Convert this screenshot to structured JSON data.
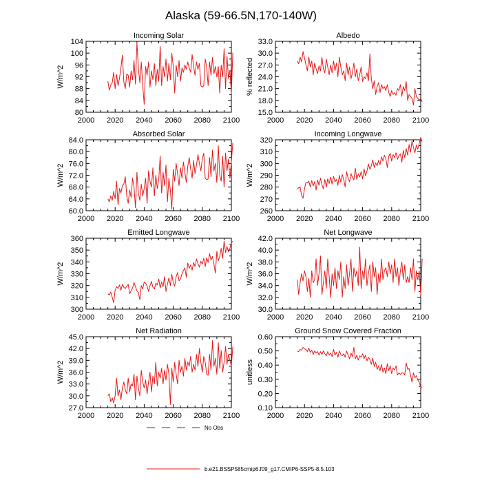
{
  "figure": {
    "title": "Alaska (59-66.5N,170-140W)",
    "legend": [
      {
        "label": "No Obs",
        "color": "#2b2bd6",
        "dash": true
      },
      {
        "label": "b.e21.BSSP585cmip6.f09_g17.CMIP6-SSP5-8.5.103",
        "color": "#e6191a",
        "dash": false
      }
    ],
    "line_color": "#e6191a"
  },
  "chart_data": [
    {
      "type": "line",
      "title": "Incoming Solar",
      "ylabel": "W/m^2",
      "xlim": [
        2000,
        2100
      ],
      "xticks": [
        2000,
        2020,
        2040,
        2060,
        2080,
        2100
      ],
      "ylim": [
        80,
        104
      ],
      "yticks": [
        "80",
        "84",
        "88",
        "92",
        "96",
        "100",
        "104"
      ],
      "x_start": 2015,
      "values": [
        90.5,
        87.5,
        89.2,
        90.0,
        93.5,
        88.0,
        92.8,
        89.0,
        91.5,
        95.0,
        99.3,
        90.2,
        88.0,
        93.0,
        92.5,
        88.5,
        94.0,
        91.0,
        97.5,
        89.5,
        103.6,
        95.0,
        90.0,
        97.0,
        89.0,
        82.7,
        95.5,
        92.5,
        97.0,
        88.5,
        94.0,
        91.0,
        96.5,
        89.0,
        94.5,
        90.5,
        102.3,
        89.0,
        95.5,
        92.0,
        98.0,
        90.5,
        96.5,
        91.0,
        100.0,
        95.5,
        86.5,
        96.0,
        92.0,
        97.5,
        90.5,
        95.0,
        93.5,
        96.0,
        94.5,
        97.0,
        95.0,
        93.5,
        99.5,
        95.5,
        92.5,
        97.0,
        94.5,
        96.5,
        89.0,
        88.5,
        89.0,
        98.0,
        95.5,
        89.0,
        97.0,
        92.5,
        98.5,
        93.0,
        95.5,
        92.0,
        95.5,
        86.5,
        96.0,
        92.0,
        101.5,
        88.0,
        99.0,
        91.5,
        94.0,
        86.2,
        100.2
      ]
    },
    {
      "type": "line",
      "title": "Albedo",
      "ylabel": "% reflected",
      "xlim": [
        2000,
        2100
      ],
      "xticks": [
        2000,
        2020,
        2040,
        2060,
        2080,
        2100
      ],
      "ylim": [
        15,
        33
      ],
      "yticks": [
        "15.0",
        "18.0",
        "21.0",
        "24.0",
        "27.0",
        "30.0",
        "33.0"
      ],
      "x_start": 2015,
      "values": [
        28.0,
        27.3,
        29.0,
        27.8,
        30.4,
        28.8,
        27.0,
        25.5,
        29.0,
        26.5,
        28.0,
        24.5,
        27.5,
        26.0,
        24.8,
        26.8,
        25.5,
        29.0,
        26.0,
        25.0,
        28.5,
        26.5,
        24.5,
        27.0,
        25.0,
        28.0,
        25.5,
        27.5,
        24.0,
        29.0,
        26.5,
        24.5,
        25.5,
        23.0,
        27.5,
        24.5,
        26.5,
        23.5,
        25.0,
        27.5,
        24.0,
        26.0,
        23.0,
        24.5,
        26.5,
        22.8,
        24.0,
        23.5,
        25.0,
        23.0,
        29.8,
        23.5,
        21.0,
        23.0,
        19.5,
        21.5,
        22.5,
        20.0,
        22.0,
        21.0,
        21.5,
        20.5,
        22.0,
        20.0,
        19.0,
        20.5,
        19.5,
        20.0,
        19.3,
        21.0,
        20.5,
        22.0,
        19.0,
        21.5,
        20.5,
        22.8,
        18.0,
        19.5,
        19.0,
        18.5,
        16.8,
        21.0,
        19.0,
        18.5,
        18.0,
        18.5,
        17.7
      ]
    },
    {
      "type": "line",
      "title": "Absorbed Solar",
      "ylabel": "W/m^2",
      "xlim": [
        2000,
        2100
      ],
      "xticks": [
        2000,
        2020,
        2040,
        2060,
        2080,
        2100
      ],
      "ylim": [
        60,
        84
      ],
      "yticks": [
        "60.0",
        "64.0",
        "68.0",
        "72.0",
        "76.0",
        "80.0",
        "84.0"
      ],
      "x_start": 2015,
      "values": [
        64.0,
        63.0,
        65.0,
        63.5,
        66.5,
        64.0,
        70.0,
        62.0,
        67.5,
        66.0,
        68.5,
        69.0,
        71.5,
        65.0,
        62.5,
        67.0,
        64.5,
        71.0,
        68.0,
        61.0,
        73.0,
        66.0,
        63.5,
        69.0,
        65.0,
        67.5,
        71.0,
        62.5,
        73.5,
        70.0,
        68.0,
        74.5,
        65.0,
        72.0,
        67.5,
        70.5,
        78.5,
        66.0,
        73.0,
        68.5,
        75.5,
        63.0,
        71.0,
        67.0,
        60.5,
        74.0,
        70.0,
        76.0,
        72.5,
        68.5,
        74.5,
        71.0,
        76.5,
        73.0,
        69.5,
        75.0,
        78.0,
        74.0,
        71.0,
        77.0,
        72.5,
        75.5,
        79.0,
        76.0,
        73.5,
        77.5,
        79.5,
        71.0,
        70.5,
        70.8,
        78.0,
        71.5,
        80.5,
        73.5,
        76.0,
        69.5,
        82.0,
        72.0,
        70.0,
        78.5,
        68.0,
        79.5,
        73.5,
        77.5,
        71.0,
        76.5,
        83.0
      ]
    },
    {
      "type": "line",
      "title": "Incoming Longwave",
      "ylabel": "W/m^2",
      "xlim": [
        2000,
        2100
      ],
      "xticks": [
        2000,
        2020,
        2040,
        2060,
        2080,
        2100
      ],
      "ylim": [
        260,
        320
      ],
      "yticks": [
        "260",
        "270",
        "280",
        "290",
        "300",
        "310",
        "320"
      ],
      "x_start": 2015,
      "values": [
        278.0,
        279.5,
        280.0,
        273.0,
        270.5,
        278.5,
        284.0,
        283.5,
        285.0,
        280.0,
        285.5,
        281.0,
        284.5,
        277.5,
        286.0,
        281.5,
        287.5,
        282.0,
        278.5,
        286.5,
        280.0,
        287.0,
        283.0,
        288.5,
        282.5,
        289.0,
        284.5,
        286.5,
        281.5,
        290.0,
        284.0,
        290.5,
        286.5,
        280.0,
        293.0,
        287.5,
        284.5,
        291.5,
        288.0,
        286.0,
        296.0,
        286.5,
        291.0,
        288.5,
        293.0,
        287.0,
        295.5,
        289.5,
        293.5,
        299.5,
        295.0,
        298.0,
        303.0,
        296.5,
        300.5,
        298.0,
        302.5,
        299.0,
        305.5,
        302.0,
        307.0,
        304.0,
        296.5,
        306.0,
        308.5,
        302.0,
        307.5,
        305.0,
        309.0,
        303.5,
        306.5,
        308.0,
        301.0,
        311.0,
        305.0,
        312.5,
        307.0,
        316.0,
        309.5,
        319.0,
        313.5,
        309.0,
        315.5,
        312.0,
        317.0,
        322.0,
        318.5
      ]
    },
    {
      "type": "line",
      "title": "Emitted Longwave",
      "ylabel": "W/m^2",
      "xlim": [
        2000,
        2100
      ],
      "xticks": [
        2000,
        2020,
        2040,
        2060,
        2080,
        2100
      ],
      "ylim": [
        300,
        360
      ],
      "yticks": [
        "300",
        "310",
        "320",
        "330",
        "340",
        "350",
        "360"
      ],
      "x_start": 2015,
      "values": [
        313.0,
        312.0,
        314.5,
        310.0,
        305.5,
        316.0,
        319.0,
        317.5,
        320.5,
        316.0,
        321.0,
        318.5,
        317.5,
        319.5,
        321.0,
        313.0,
        315.5,
        318.0,
        322.5,
        319.0,
        315.5,
        314.0,
        308.0,
        320.0,
        317.0,
        323.0,
        322.0,
        319.5,
        315.0,
        320.0,
        323.5,
        318.5,
        317.0,
        322.0,
        320.5,
        325.5,
        318.0,
        323.0,
        319.0,
        327.5,
        315.0,
        321.0,
        326.5,
        320.0,
        329.5,
        322.5,
        319.5,
        327.5,
        331.0,
        324.0,
        325.5,
        330.0,
        332.5,
        335.0,
        327.0,
        339.0,
        334.5,
        337.5,
        333.0,
        339.5,
        336.0,
        342.5,
        338.5,
        335.5,
        340.5,
        338.0,
        343.0,
        336.0,
        343.5,
        339.5,
        347.0,
        341.5,
        344.5,
        338.0,
        330.5,
        349.0,
        341.0,
        344.5,
        351.5,
        343.0,
        357.5,
        348.0,
        353.0,
        348.5,
        351.5,
        356.0,
        357.5
      ]
    },
    {
      "type": "line",
      "title": "Net Longwave",
      "ylabel": "W/m^2",
      "xlim": [
        2000,
        2100
      ],
      "xticks": [
        2000,
        2020,
        2040,
        2060,
        2080,
        2100
      ],
      "ylim": [
        30,
        42
      ],
      "yticks": [
        "30.0",
        "32.0",
        "34.0",
        "36.0",
        "38.0",
        "40.0",
        "42.0"
      ],
      "x_start": 2015,
      "values": [
        35.0,
        32.5,
        34.5,
        36.0,
        34.8,
        36.5,
        35.5,
        33.0,
        35.2,
        32.0,
        36.5,
        34.5,
        35.0,
        38.5,
        34.0,
        36.0,
        39.0,
        32.5,
        34.5,
        36.5,
        33.5,
        38.5,
        35.5,
        32.0,
        36.0,
        34.0,
        37.0,
        33.5,
        36.5,
        35.0,
        38.0,
        32.0,
        35.5,
        33.5,
        37.5,
        34.0,
        36.0,
        38.5,
        33.0,
        37.0,
        35.5,
        36.5,
        34.0,
        40.5,
        33.5,
        36.5,
        35.0,
        38.5,
        34.0,
        36.0,
        37.5,
        33.0,
        38.0,
        35.5,
        37.0,
        32.5,
        36.0,
        34.5,
        38.5,
        35.0,
        36.5,
        37.0,
        35.5,
        38.0,
        36.0,
        37.5,
        34.5,
        38.5,
        35.5,
        37.0,
        34.0,
        36.5,
        38.0,
        35.0,
        37.5,
        34.5,
        35.5,
        34.5,
        37.0,
        35.0,
        38.5,
        33.0,
        36.5,
        35.0,
        36.5,
        32.5,
        38.5
      ]
    },
    {
      "type": "line",
      "title": "Net Radiation",
      "ylabel": "W/m^2",
      "xlim": [
        2000,
        2100
      ],
      "xticks": [
        2000,
        2020,
        2040,
        2060,
        2080,
        2100
      ],
      "ylim": [
        27,
        45
      ],
      "yticks": [
        "27.0",
        "30.0",
        "33.0",
        "36.0",
        "39.0",
        "42.0",
        "45.0"
      ],
      "x_start": 2015,
      "values": [
        30.0,
        30.5,
        28.5,
        29.5,
        28.2,
        30.0,
        34.5,
        30.0,
        31.5,
        29.0,
        32.0,
        33.5,
        31.5,
        30.5,
        34.5,
        31.0,
        33.0,
        32.5,
        35.5,
        29.0,
        35.0,
        32.0,
        30.0,
        36.5,
        33.5,
        32.0,
        34.0,
        30.5,
        33.5,
        36.0,
        31.0,
        35.0,
        33.0,
        38.5,
        32.5,
        36.0,
        34.5,
        37.0,
        33.0,
        36.5,
        34.0,
        38.0,
        35.5,
        27.8,
        37.0,
        33.5,
        38.5,
        35.5,
        33.0,
        39.0,
        36.0,
        37.5,
        35.0,
        39.5,
        36.5,
        38.5,
        37.5,
        40.0,
        36.0,
        38.0,
        36.5,
        40.5,
        37.5,
        42.0,
        38.5,
        36.0,
        40.0,
        38.5,
        35.5,
        35.2,
        40.5,
        36.5,
        44.0,
        37.5,
        39.5,
        35.5,
        43.5,
        37.0,
        41.5,
        36.0,
        38.5,
        42.5,
        38.0,
        40.5,
        39.0,
        37.5,
        42.5
      ]
    },
    {
      "type": "line",
      "title": "Ground Snow Covered Fraction",
      "ylabel": "unitless",
      "xlim": [
        2000,
        2100
      ],
      "xticks": [
        2000,
        2020,
        2040,
        2060,
        2080,
        2100
      ],
      "ylim": [
        0.1,
        0.6
      ],
      "yticks": [
        "0.10",
        "0.20",
        "0.30",
        "0.40",
        "0.50",
        "0.60"
      ],
      "x_start": 2015,
      "values": [
        0.5,
        0.495,
        0.51,
        0.505,
        0.525,
        0.515,
        0.51,
        0.495,
        0.52,
        0.49,
        0.505,
        0.475,
        0.5,
        0.485,
        0.495,
        0.47,
        0.495,
        0.475,
        0.5,
        0.48,
        0.465,
        0.495,
        0.47,
        0.485,
        0.46,
        0.51,
        0.47,
        0.49,
        0.455,
        0.5,
        0.475,
        0.465,
        0.48,
        0.455,
        0.5,
        0.47,
        0.445,
        0.485,
        0.46,
        0.525,
        0.445,
        0.47,
        0.435,
        0.465,
        0.455,
        0.48,
        0.445,
        0.47,
        0.43,
        0.455,
        0.44,
        0.405,
        0.45,
        0.39,
        0.42,
        0.37,
        0.395,
        0.36,
        0.405,
        0.35,
        0.38,
        0.34,
        0.41,
        0.36,
        0.395,
        0.34,
        0.38,
        0.365,
        0.395,
        0.33,
        0.345,
        0.335,
        0.345,
        0.345,
        0.33,
        0.415,
        0.37,
        0.375,
        0.33,
        0.28,
        0.345,
        0.31,
        0.325,
        0.295,
        0.28,
        0.245,
        0.245
      ]
    }
  ]
}
